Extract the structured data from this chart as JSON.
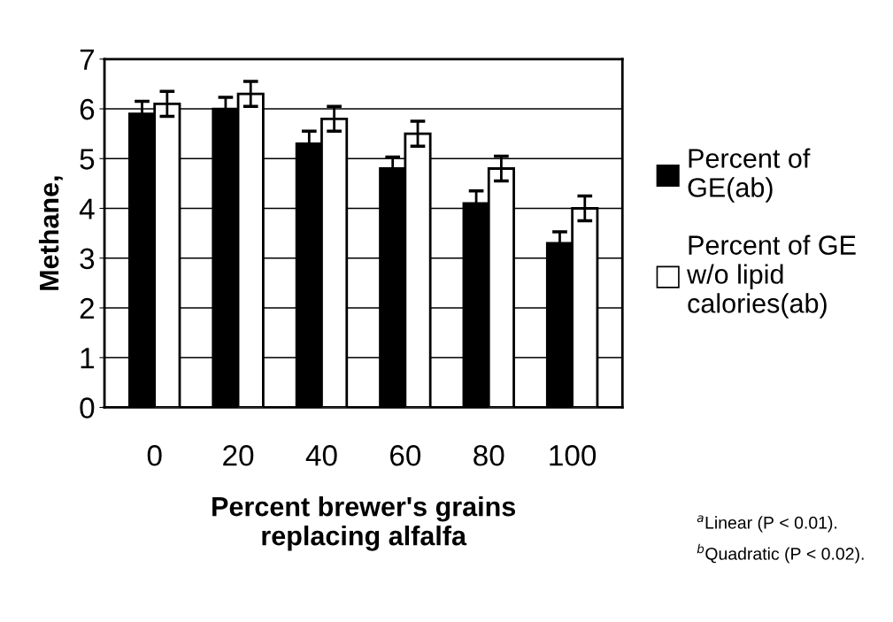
{
  "chart_data": {
    "type": "bar",
    "xlabel": "Percent brewer's grains\nreplacing alfalfa",
    "ylabel": "Methane,",
    "categories": [
      "0",
      "20",
      "40",
      "60",
      "80",
      "100"
    ],
    "series": [
      {
        "name": "Percent of\nGE(ab)",
        "color": "#000000",
        "values": [
          5.9,
          6.0,
          5.3,
          4.8,
          4.1,
          3.3
        ],
        "errors": [
          0.25,
          0.23,
          0.25,
          0.23,
          0.25,
          0.23
        ]
      },
      {
        "name": "Percent of GE\nw/o lipid\ncalories(ab)",
        "color": "#ffffff",
        "values": [
          6.1,
          6.3,
          5.8,
          5.5,
          4.8,
          4.0
        ],
        "errors": [
          0.25,
          0.25,
          0.25,
          0.25,
          0.25,
          0.25
        ]
      }
    ],
    "ylim": [
      0,
      7
    ],
    "yticks": [
      0,
      1,
      2,
      3,
      4,
      5,
      6,
      7
    ],
    "grid": "y",
    "legend": "right",
    "annotations": [
      "$^{a}$Linear (P < 0.01).",
      "$^{b}$Quadratic (P < 0.02)."
    ]
  }
}
